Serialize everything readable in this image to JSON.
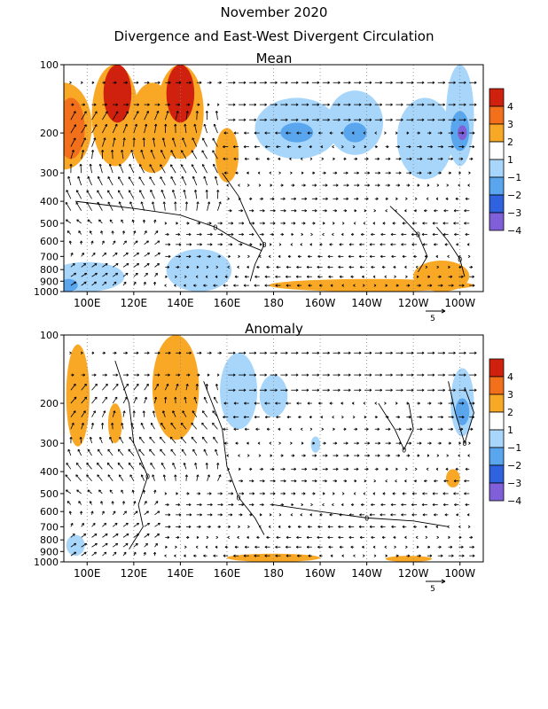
{
  "figure": {
    "title": "November 2020",
    "subtitle": "Divergence and East-West Divergent Circulation"
  },
  "chart_data": [
    {
      "type": "heatmap",
      "title": "Mean",
      "x_ticks": [
        "100E",
        "120E",
        "140E",
        "160E",
        "180",
        "160W",
        "140W",
        "120W",
        "100W"
      ],
      "y_ticks": [
        "100",
        "200",
        "300",
        "400",
        "500",
        "600",
        "700",
        "800",
        "900",
        "1000"
      ],
      "y_scale": "log",
      "colorbar": {
        "labels": [
          "4",
          "3",
          "2",
          "1",
          "−1",
          "−2",
          "−3",
          "−4"
        ],
        "colors": [
          "#d0210f",
          "#f26f1c",
          "#f9a826",
          "#ffffff",
          "#a8d6fb",
          "#5aa6ee",
          "#2f62de",
          "#8060d8"
        ]
      },
      "contour_label": "0",
      "vector_label": "5",
      "regions": [
        {
          "lon": 90,
          "lonw": 12,
          "top": 120,
          "bot": 290,
          "level": "2"
        },
        {
          "lon": 93,
          "lonw": 6,
          "top": 140,
          "bot": 260,
          "level": "3"
        },
        {
          "lon": 112,
          "lonw": 10,
          "top": 100,
          "bot": 280,
          "level": "2"
        },
        {
          "lon": 113,
          "lonw": 6,
          "top": 100,
          "bot": 180,
          "level": "4"
        },
        {
          "lon": 128,
          "lonw": 10,
          "top": 120,
          "bot": 300,
          "level": "2"
        },
        {
          "lon": 140,
          "lonw": 10,
          "top": 100,
          "bot": 260,
          "level": "2"
        },
        {
          "lon": 140,
          "lonw": 6,
          "top": 100,
          "bot": 180,
          "level": "4"
        },
        {
          "lon": 160,
          "lonw": 5,
          "top": 190,
          "bot": 330,
          "level": "2"
        },
        {
          "lon": 190,
          "lonw": 18,
          "top": 140,
          "bot": 260,
          "level": "-1"
        },
        {
          "lon": 190,
          "lonw": 7,
          "top": 180,
          "bot": 220,
          "level": "-2"
        },
        {
          "lon": 215,
          "lonw": 12,
          "top": 130,
          "bot": 250,
          "level": "-1"
        },
        {
          "lon": 215,
          "lonw": 5,
          "top": 180,
          "bot": 220,
          "level": "-2"
        },
        {
          "lon": 245,
          "lonw": 12,
          "top": 140,
          "bot": 320,
          "level": "-1"
        },
        {
          "lon": 260,
          "lonw": 6,
          "top": 100,
          "bot": 280,
          "level": "-1"
        },
        {
          "lon": 260,
          "lonw": 4,
          "top": 160,
          "bot": 240,
          "level": "-2"
        },
        {
          "lon": 261,
          "lonw": 2,
          "top": 185,
          "bot": 215,
          "level": "-4"
        },
        {
          "lon": 100,
          "lonw": 16,
          "top": 740,
          "bot": 1000,
          "level": "-1"
        },
        {
          "lon": 92,
          "lonw": 4,
          "top": 880,
          "bot": 1000,
          "level": "-2"
        },
        {
          "lon": 148,
          "lonw": 14,
          "top": 650,
          "bot": 1000,
          "level": "-1"
        },
        {
          "lon": 222,
          "lonw": 44,
          "top": 880,
          "bot": 1000,
          "level": "2"
        },
        {
          "lon": 252,
          "lonw": 12,
          "top": 730,
          "bot": 1000,
          "level": "2"
        }
      ]
    },
    {
      "type": "heatmap",
      "title": "Anomaly",
      "x_ticks": [
        "100E",
        "120E",
        "140E",
        "160E",
        "180",
        "160W",
        "140W",
        "120W",
        "100W"
      ],
      "y_ticks": [
        "100",
        "200",
        "300",
        "400",
        "500",
        "600",
        "700",
        "800",
        "900",
        "1000"
      ],
      "y_scale": "log",
      "colorbar": {
        "labels": [
          "4",
          "3",
          "2",
          "1",
          "−1",
          "−2",
          "−3",
          "−4"
        ],
        "colors": [
          "#d0210f",
          "#f26f1c",
          "#f9a826",
          "#ffffff",
          "#a8d6fb",
          "#5aa6ee",
          "#2f62de",
          "#8060d8"
        ]
      },
      "contour_label": "0",
      "vector_label": "5",
      "regions": [
        {
          "lon": 96,
          "lonw": 5,
          "top": 110,
          "bot": 310,
          "level": "2"
        },
        {
          "lon": 112,
          "lonw": 3,
          "top": 200,
          "bot": 300,
          "level": "2"
        },
        {
          "lon": 138,
          "lonw": 10,
          "top": 100,
          "bot": 290,
          "level": "2"
        },
        {
          "lon": 165,
          "lonw": 8,
          "top": 120,
          "bot": 260,
          "level": "-1"
        },
        {
          "lon": 180,
          "lonw": 6,
          "top": 150,
          "bot": 230,
          "level": "-1"
        },
        {
          "lon": 261,
          "lonw": 5,
          "top": 140,
          "bot": 280,
          "level": "-1"
        },
        {
          "lon": 261,
          "lonw": 3,
          "top": 190,
          "bot": 250,
          "level": "-2"
        },
        {
          "lon": 198,
          "lonw": 2,
          "top": 280,
          "bot": 330,
          "level": "-1"
        },
        {
          "lon": 257,
          "lonw": 3,
          "top": 390,
          "bot": 470,
          "level": "2"
        },
        {
          "lon": 95,
          "lonw": 4,
          "top": 760,
          "bot": 940,
          "level": "-1"
        },
        {
          "lon": 180,
          "lonw": 20,
          "top": 920,
          "bot": 1000,
          "level": "2"
        },
        {
          "lon": 238,
          "lonw": 10,
          "top": 940,
          "bot": 1000,
          "level": "2"
        }
      ]
    }
  ]
}
